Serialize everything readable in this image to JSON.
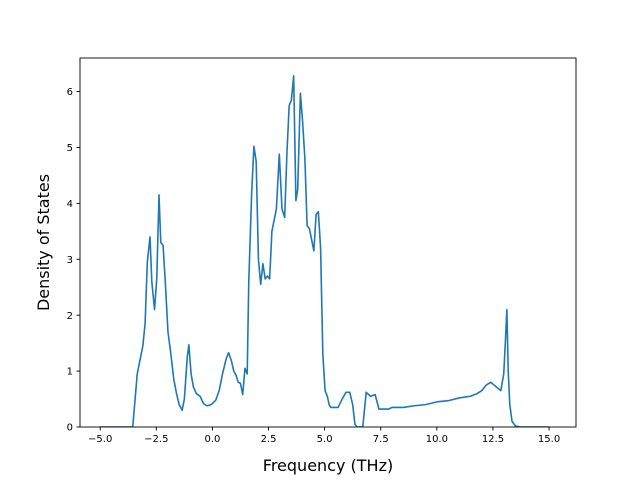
{
  "chart_data": {
    "type": "line",
    "title": "",
    "xlabel": "Frequency (THz)",
    "ylabel": "Density of States",
    "xlim": [
      -5.9,
      16.2
    ],
    "ylim": [
      0,
      6.6
    ],
    "xticks": [
      -5.0,
      -2.5,
      0.0,
      2.5,
      5.0,
      7.5,
      10.0,
      12.5,
      15.0
    ],
    "xtick_labels": [
      "−5.0",
      "−2.5",
      "0.0",
      "2.5",
      "5.0",
      "7.5",
      "10.0",
      "12.5",
      "15.0"
    ],
    "yticks": [
      0,
      1,
      2,
      3,
      4,
      5,
      6
    ],
    "ytick_labels": [
      "0",
      "1",
      "2",
      "3",
      "4",
      "5",
      "6"
    ],
    "grid": false,
    "legend": "none",
    "line_color": "#1f77b4",
    "series": [
      {
        "x": [
          -5.0,
          -3.55,
          -3.35,
          -3.1,
          -3.0,
          -2.9,
          -2.78,
          -2.7,
          -2.58,
          -2.48,
          -2.38,
          -2.3,
          -2.2,
          -2.1,
          -1.98,
          -1.85,
          -1.72,
          -1.6,
          -1.48,
          -1.35,
          -1.25,
          -1.12,
          -1.05,
          -0.95,
          -0.85,
          -0.72,
          -0.55,
          -0.4,
          -0.25,
          -0.12,
          0.0,
          0.15,
          0.3,
          0.45,
          0.6,
          0.72,
          0.85,
          0.95,
          1.05,
          1.15,
          1.25,
          1.35,
          1.45,
          1.55,
          1.62,
          1.75,
          1.85,
          1.95,
          2.05,
          2.15,
          2.25,
          2.35,
          2.45,
          2.55,
          2.65,
          2.75,
          2.85,
          2.98,
          3.1,
          3.22,
          3.32,
          3.42,
          3.52,
          3.62,
          3.72,
          3.8,
          3.92,
          4.02,
          4.12,
          4.22,
          4.32,
          4.42,
          4.52,
          4.62,
          4.72,
          4.82,
          4.92,
          5.02,
          5.12,
          5.2,
          5.28,
          5.35,
          5.45,
          5.6,
          5.78,
          5.95,
          6.12,
          6.25,
          6.35,
          6.45,
          6.52,
          6.6,
          6.7,
          6.85,
          7.05,
          7.25,
          7.42,
          7.55,
          7.65,
          7.75,
          7.85,
          8.0,
          8.5,
          9.0,
          9.5,
          10.0,
          10.5,
          11.0,
          11.5,
          11.8,
          12.0,
          12.2,
          12.4,
          12.55,
          12.7,
          12.85,
          12.98,
          13.05,
          13.12,
          13.18,
          13.25,
          13.35,
          13.5,
          13.7,
          14.0,
          15.0
        ],
        "y": [
          0,
          0,
          0.95,
          1.45,
          1.85,
          2.95,
          3.4,
          2.6,
          2.1,
          2.65,
          4.15,
          3.3,
          3.25,
          2.6,
          1.7,
          1.3,
          0.85,
          0.6,
          0.4,
          0.3,
          0.5,
          1.25,
          1.47,
          0.95,
          0.72,
          0.6,
          0.55,
          0.42,
          0.38,
          0.39,
          0.42,
          0.48,
          0.65,
          0.95,
          1.2,
          1.33,
          1.18,
          1.0,
          0.93,
          0.8,
          0.78,
          0.58,
          1.05,
          0.95,
          2.6,
          4.2,
          5.02,
          4.75,
          3.0,
          2.55,
          2.92,
          2.65,
          2.7,
          2.65,
          3.5,
          3.7,
          3.9,
          4.88,
          3.9,
          3.75,
          4.9,
          5.75,
          5.85,
          6.28,
          4.05,
          4.25,
          5.97,
          5.45,
          4.8,
          3.6,
          3.55,
          3.35,
          3.15,
          3.8,
          3.85,
          3.2,
          1.3,
          0.65,
          0.55,
          0.4,
          0.35,
          0.35,
          0.35,
          0.35,
          0.5,
          0.62,
          0.62,
          0.4,
          0.05,
          0,
          0,
          0,
          0,
          0.62,
          0.55,
          0.58,
          0.32,
          0.32,
          0.32,
          0.32,
          0.32,
          0.35,
          0.35,
          0.38,
          0.4,
          0.45,
          0.47,
          0.52,
          0.55,
          0.6,
          0.65,
          0.75,
          0.8,
          0.75,
          0.7,
          0.65,
          0.95,
          1.5,
          2.1,
          1.0,
          0.4,
          0.1,
          0.02,
          0.0,
          0,
          0
        ]
      }
    ]
  }
}
